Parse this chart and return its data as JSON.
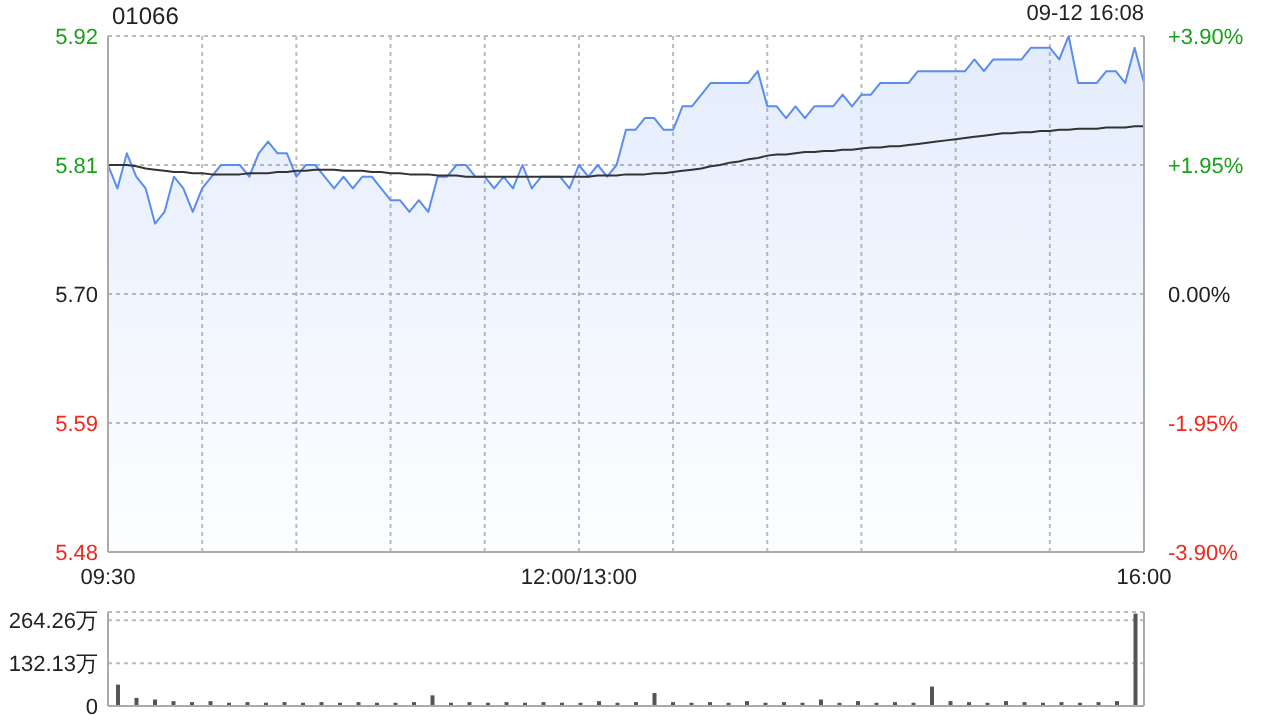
{
  "chart_data": [
    {
      "type": "area",
      "title": "01066",
      "annotations": [
        "09-12 16:08"
      ],
      "categories": [
        "09:30",
        null,
        null,
        null,
        null,
        null,
        null,
        null,
        null,
        null,
        null,
        null,
        null,
        null,
        null,
        null,
        null,
        null,
        null,
        null,
        null,
        null,
        null,
        null,
        null,
        null,
        null,
        null,
        null,
        null,
        null,
        null,
        null,
        null,
        null,
        null,
        null,
        null,
        null,
        null,
        null,
        null,
        null,
        null,
        null,
        null,
        null,
        null,
        null,
        null,
        "12:00/13:00",
        null,
        null,
        null,
        null,
        null,
        null,
        null,
        null,
        null,
        null,
        null,
        null,
        null,
        null,
        null,
        null,
        null,
        null,
        null,
        null,
        null,
        null,
        null,
        null,
        null,
        null,
        null,
        null,
        null,
        null,
        null,
        null,
        null,
        null,
        null,
        null,
        null,
        null,
        null,
        null,
        null,
        null,
        null,
        null,
        null,
        null,
        null,
        null,
        null,
        null,
        null,
        null,
        null,
        null,
        null,
        null,
        null,
        null,
        null,
        "16:00"
      ],
      "ylim": [
        5.48,
        5.92
      ],
      "yticks": [
        5.48,
        5.59,
        {
          "value": 5.7,
          "label": "5.70"
        },
        5.81,
        5.92
      ],
      "y2lim": [
        -3.9,
        3.9
      ],
      "y2ticks": [
        {
          "value": -3.9,
          "label": "-3.90%"
        },
        {
          "value": -1.95,
          "label": "-1.95%"
        },
        {
          "value": 0,
          "label": "0.00%"
        },
        {
          "value": 1.95,
          "label": "+1.95%"
        },
        {
          "value": 3.9,
          "label": "+3.90%"
        }
      ],
      "grid": true,
      "legend": false,
      "marker": "none",
      "series": [
        {
          "color": "#5b8def",
          "values": [
            5.81,
            5.79,
            5.82,
            5.8,
            5.79,
            5.76,
            5.77,
            5.8,
            5.79,
            5.77,
            5.79,
            5.8,
            5.81,
            5.81,
            5.81,
            5.8,
            5.82,
            5.83,
            5.82,
            5.82,
            5.8,
            5.81,
            5.81,
            5.8,
            5.79,
            5.8,
            5.79,
            5.8,
            5.8,
            5.79,
            5.78,
            5.78,
            5.77,
            5.78,
            5.77,
            5.8,
            5.8,
            5.81,
            5.81,
            5.8,
            5.8,
            5.79,
            5.8,
            5.79,
            5.81,
            5.79,
            5.8,
            5.8,
            5.8,
            5.79,
            5.81,
            5.8,
            5.81,
            5.8,
            5.81,
            5.84,
            5.84,
            5.85,
            5.85,
            5.84,
            5.84,
            5.86,
            5.86,
            5.87,
            5.88,
            5.88,
            5.88,
            5.88,
            5.88,
            5.89,
            5.86,
            5.86,
            5.85,
            5.86,
            5.85,
            5.86,
            5.86,
            5.86,
            5.87,
            5.86,
            5.87,
            5.87,
            5.88,
            5.88,
            5.88,
            5.88,
            5.89,
            5.89,
            5.89,
            5.89,
            5.89,
            5.89,
            5.9,
            5.89,
            5.9,
            5.9,
            5.9,
            5.9,
            5.91,
            5.91,
            5.91,
            5.9,
            5.92,
            5.88,
            5.88,
            5.88,
            5.89,
            5.89,
            5.88,
            5.91,
            5.88
          ]
        },
        {
          "type": "line",
          "color": "#333333",
          "values": [
            5.81,
            5.81,
            5.81,
            5.809,
            5.807,
            5.806,
            5.805,
            5.804,
            5.804,
            5.803,
            5.803,
            5.802,
            5.802,
            5.802,
            5.802,
            5.803,
            5.803,
            5.803,
            5.804,
            5.804,
            5.805,
            5.805,
            5.806,
            5.806,
            5.806,
            5.805,
            5.805,
            5.805,
            5.804,
            5.804,
            5.803,
            5.803,
            5.802,
            5.802,
            5.802,
            5.801,
            5.801,
            5.801,
            5.8,
            5.8,
            5.8,
            5.8,
            5.8,
            5.8,
            5.8,
            5.8,
            5.8,
            5.8,
            5.8,
            5.8,
            5.8,
            5.8,
            5.801,
            5.801,
            5.801,
            5.802,
            5.802,
            5.802,
            5.803,
            5.803,
            5.804,
            5.805,
            5.806,
            5.807,
            5.809,
            5.81,
            5.812,
            5.813,
            5.815,
            5.816,
            5.818,
            5.819,
            5.819,
            5.82,
            5.821,
            5.821,
            5.822,
            5.822,
            5.823,
            5.823,
            5.824,
            5.825,
            5.825,
            5.826,
            5.826,
            5.827,
            5.828,
            5.829,
            5.83,
            5.831,
            5.832,
            5.833,
            5.834,
            5.835,
            5.836,
            5.837,
            5.837,
            5.838,
            5.838,
            5.839,
            5.839,
            5.84,
            5.84,
            5.841,
            5.841,
            5.841,
            5.842,
            5.842,
            5.842,
            5.843,
            5.843
          ]
        }
      ]
    },
    {
      "type": "bar",
      "color": "#555555",
      "tick_labels": "y",
      "grid": "y",
      "legend": false,
      "categories": [
        null,
        null,
        null,
        null,
        null,
        null,
        null,
        null,
        null,
        null,
        null,
        null,
        null,
        null,
        null,
        null,
        null,
        null,
        null,
        null,
        null,
        null,
        null,
        null,
        null,
        null,
        null,
        null,
        null,
        null,
        null,
        null,
        null,
        null,
        null,
        null,
        null,
        null,
        null,
        null,
        null,
        null,
        null,
        null,
        null,
        null,
        null,
        null,
        null,
        null,
        null,
        null,
        null,
        null,
        null,
        null
      ],
      "ylim": [
        0,
        290
      ],
      "yticks": [
        0,
        {
          "value": 132.13,
          "label": "132.13万"
        },
        {
          "value": 264.26,
          "label": "264.26万"
        }
      ],
      "values": [
        66,
        25,
        20,
        15,
        12,
        15,
        10,
        12,
        10,
        12,
        10,
        12,
        10,
        12,
        10,
        10,
        12,
        33,
        10,
        12,
        10,
        12,
        10,
        12,
        10,
        10,
        15,
        10,
        12,
        40,
        12,
        10,
        12,
        10,
        15,
        10,
        12,
        10,
        20,
        10,
        15,
        10,
        12,
        10,
        60,
        15,
        12,
        10,
        15,
        12,
        10,
        12,
        10,
        12,
        15,
        285
      ]
    }
  ]
}
